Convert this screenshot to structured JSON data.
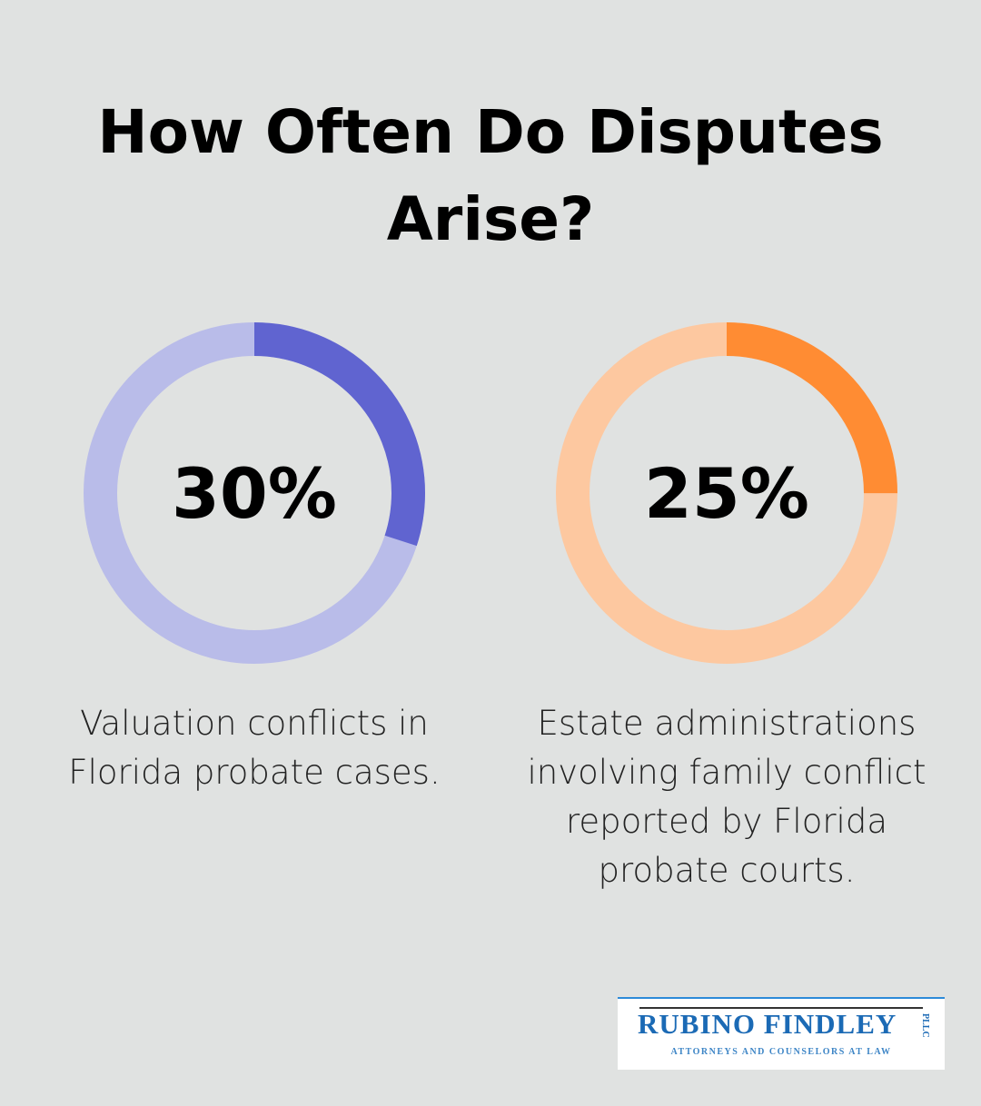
{
  "title": "How Often Do Disputes Arise?",
  "stats": [
    {
      "value": 30,
      "label": "30%",
      "description": "Valuation conflicts in Florida probate cases.",
      "color": "#6064d0",
      "track_color": "#b9bce9"
    },
    {
      "value": 25,
      "label": "25%",
      "description": "Estate administrations involving family conflict reported by Florida probate courts.",
      "color": "#ff8c33",
      "track_color": "#fdc8a0"
    }
  ],
  "logo": {
    "name": "RUBINO FINDLEY",
    "suffix": "PLLC",
    "tagline": "ATTORNEYS AND COUNSELORS AT LAW"
  }
}
